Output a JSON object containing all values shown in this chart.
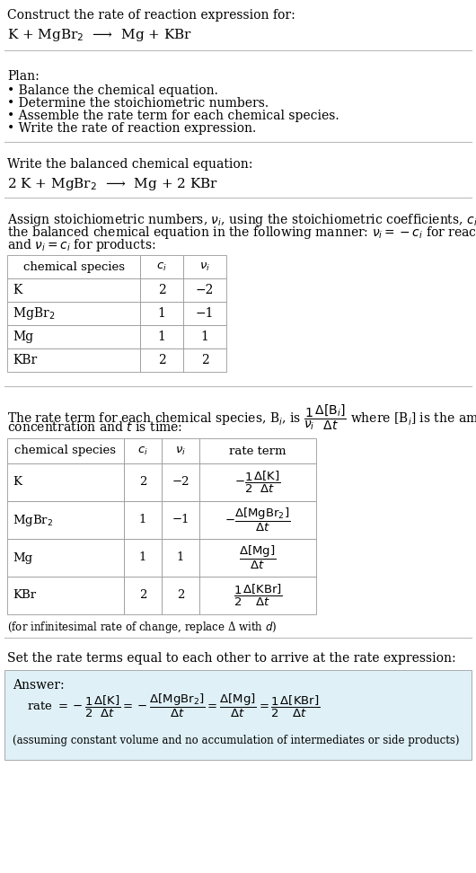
{
  "bg_color": "#ffffff",
  "text_color": "#000000",
  "section1_title": "Construct the rate of reaction expression for:",
  "section1_eq": "K + MgBr$_2$  ⟶  Mg + KBr",
  "section2_title": "Plan:",
  "section2_bullets": [
    "• Balance the chemical equation.",
    "• Determine the stoichiometric numbers.",
    "• Assemble the rate term for each chemical species.",
    "• Write the rate of reaction expression."
  ],
  "section3_title": "Write the balanced chemical equation:",
  "section3_eq": "2 K + MgBr$_2$  ⟶  Mg + 2 KBr",
  "section4_line1": "Assign stoichiometric numbers, $\\nu_i$, using the stoichiometric coefficients, $c_i$, from",
  "section4_line2": "the balanced chemical equation in the following manner: $\\nu_i = -c_i$ for reactants",
  "section4_line3": "and $\\nu_i = c_i$ for products:",
  "table1_headers": [
    "chemical species",
    "$c_i$",
    "$\\nu_i$"
  ],
  "table1_rows": [
    [
      "K",
      "2",
      "−2"
    ],
    [
      "MgBr$_2$",
      "1",
      "−1"
    ],
    [
      "Mg",
      "1",
      "1"
    ],
    [
      "KBr",
      "2",
      "2"
    ]
  ],
  "section5_line1": "The rate term for each chemical species, B$_i$, is $\\dfrac{1}{\\nu_i}\\dfrac{\\Delta[\\mathrm{B}_i]}{\\Delta t}$ where [B$_i$] is the amount",
  "section5_line2": "concentration and $t$ is time:",
  "table2_headers": [
    "chemical species",
    "$c_i$",
    "$\\nu_i$",
    "rate term"
  ],
  "table2_rows": [
    [
      "K",
      "2",
      "−2",
      "$-\\dfrac{1}{2}\\dfrac{\\Delta[\\mathrm{K}]}{\\Delta t}$"
    ],
    [
      "MgBr$_2$",
      "1",
      "−1",
      "$-\\dfrac{\\Delta[\\mathrm{MgBr_2}]}{\\Delta t}$"
    ],
    [
      "Mg",
      "1",
      "1",
      "$\\dfrac{\\Delta[\\mathrm{Mg}]}{\\Delta t}$"
    ],
    [
      "KBr",
      "2",
      "2",
      "$\\dfrac{1}{2}\\dfrac{\\Delta[\\mathrm{KBr}]}{\\Delta t}$"
    ]
  ],
  "section5_note": "(for infinitesimal rate of change, replace Δ with $d$)",
  "section6_intro": "Set the rate terms equal to each other to arrive at the rate expression:",
  "answer_label": "Answer:",
  "answer_eq": "rate $= -\\dfrac{1}{2}\\dfrac{\\Delta[\\mathrm{K}]}{\\Delta t} = -\\dfrac{\\Delta[\\mathrm{MgBr_2}]}{\\Delta t} = \\dfrac{\\Delta[\\mathrm{Mg}]}{\\Delta t} = \\dfrac{1}{2}\\dfrac{\\Delta[\\mathrm{KBr}]}{\\Delta t}$",
  "answer_note": "(assuming constant volume and no accumulation of intermediates or side products)",
  "answer_bg": "#dff0f7",
  "sep_color": "#bbbbbb",
  "font_size": 10,
  "font_size_eq": 11,
  "font_size_small": 8.5
}
